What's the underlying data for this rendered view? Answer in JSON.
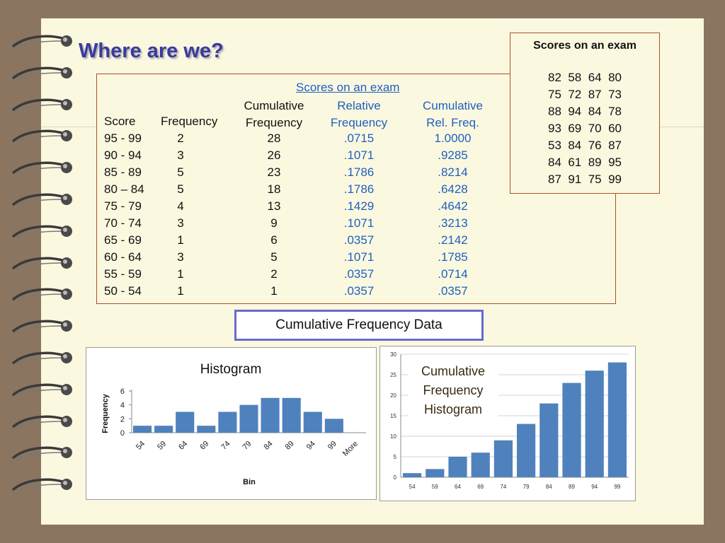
{
  "slide_title": "Where are we?",
  "table": {
    "caption": "Scores on an exam",
    "headers": {
      "score": "Score",
      "frequency": "Frequency",
      "cum_freq_1": "Cumulative",
      "cum_freq_2": "Frequency",
      "rel_freq_1": "Relative",
      "rel_freq_2": "Frequency",
      "cum_rel_1": "Cumulative",
      "cum_rel_2": "Rel. Freq."
    },
    "rows": [
      {
        "score": "95 - 99",
        "freq": "2",
        "cum": "28",
        "rel": ".0715",
        "cumrel": "1.0000"
      },
      {
        "score": "90 - 94",
        "freq": "3",
        "cum": "26",
        "rel": ".1071",
        "cumrel": ".9285"
      },
      {
        "score": "85 - 89",
        "freq": "5",
        "cum": "23",
        "rel": ".1786",
        "cumrel": ".8214"
      },
      {
        "score": "80 – 84",
        "freq": "5",
        "cum": "18",
        "rel": ".1786",
        "cumrel": ".6428"
      },
      {
        "score": "75 - 79",
        "freq": "4",
        "cum": "13",
        "rel": ".1429",
        "cumrel": ".4642"
      },
      {
        "score": "70 - 74",
        "freq": "3",
        "cum": "9",
        "rel": ".1071",
        "cumrel": ".3213"
      },
      {
        "score": "65 - 69",
        "freq": "1",
        "cum": "6",
        "rel": ".0357",
        "cumrel": ".2142"
      },
      {
        "score": "60 - 64",
        "freq": "3",
        "cum": "5",
        "rel": ".1071",
        "cumrel": ".1785"
      },
      {
        "score": "55 - 59",
        "freq": "1",
        "cum": "2",
        "rel": ".0357",
        "cumrel": ".0714"
      },
      {
        "score": "50 - 54",
        "freq": "1",
        "cum": "1",
        "rel": ".0357",
        "cumrel": ".0357"
      }
    ]
  },
  "scores_box": {
    "heading": "Scores on an exam",
    "rows": [
      "82  58  64  80",
      "75  72  87  73",
      "88  94  84  78",
      "93  69  70  60",
      "53  84  76  87",
      "84  61  89  95",
      "87  91  75  99"
    ]
  },
  "cum_freq_label": "Cumulative Frequency Data",
  "colors": {
    "bar": "#4f81bd",
    "title": "#3a3aa0",
    "blue_text": "#1f5fbf",
    "border": "#a5532a",
    "label_border": "#6a6ad0"
  },
  "chart_data": [
    {
      "type": "bar",
      "title": "Histogram",
      "xlabel": "Bin",
      "ylabel": "Frequency",
      "categories": [
        "54",
        "59",
        "64",
        "69",
        "74",
        "79",
        "84",
        "89",
        "94",
        "99",
        "More"
      ],
      "values": [
        1,
        1,
        3,
        1,
        3,
        4,
        5,
        5,
        3,
        2,
        0
      ],
      "ylim": [
        0,
        6
      ],
      "yticks": [
        "0",
        "2",
        "4",
        "6"
      ],
      "grid": false,
      "legend": "none"
    },
    {
      "type": "bar",
      "title": "",
      "annotation": "Cumulative Frequency Histogram",
      "categories": [
        "54",
        "59",
        "64",
        "69",
        "74",
        "79",
        "84",
        "89",
        "94",
        "99"
      ],
      "values": [
        1,
        2,
        5,
        6,
        9,
        13,
        18,
        23,
        26,
        28
      ],
      "ylim": [
        0,
        30
      ],
      "yticks": [
        "0",
        "5",
        "10",
        "15",
        "20",
        "25",
        "30"
      ],
      "grid": true,
      "legend": "none"
    }
  ]
}
